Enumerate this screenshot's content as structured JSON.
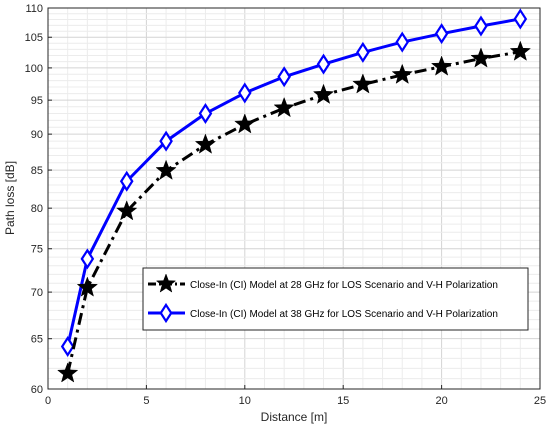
{
  "chart_data": {
    "type": "line",
    "title": "",
    "xlabel": "Distance [m]",
    "ylabel": "Path loss [dB]",
    "xlim": [
      0,
      25
    ],
    "ylim": [
      60,
      110
    ],
    "yscale": "log",
    "x_ticks": [
      0,
      5,
      10,
      15,
      20,
      25
    ],
    "y_ticks": [
      60,
      65,
      70,
      75,
      80,
      85,
      90,
      95,
      100,
      105,
      110
    ],
    "grid": true,
    "legend_position": "center-right",
    "x": [
      1,
      2,
      4,
      6,
      8,
      10,
      12,
      14,
      16,
      18,
      20,
      22,
      24
    ],
    "series": [
      {
        "name": "Close-In (CI) Model at 28 GHz for LOS Scenario and V-H Polarization",
        "values": [
          61.5,
          70.5,
          79.6,
          84.9,
          88.5,
          91.4,
          93.8,
          95.8,
          97.4,
          98.9,
          100.2,
          101.5,
          102.6
        ],
        "color": "#000000",
        "line_style": "dash-dot",
        "marker": "star"
      },
      {
        "name": "Close-In (CI) Model at 38 GHz for LOS Scenario and V-H Polarization",
        "values": [
          64.2,
          73.8,
          83.5,
          89.0,
          93.0,
          96.1,
          98.6,
          100.6,
          102.5,
          104.2,
          105.6,
          106.9,
          108.1
        ],
        "color": "#0000ff",
        "line_style": "solid",
        "marker": "diamond"
      }
    ]
  }
}
